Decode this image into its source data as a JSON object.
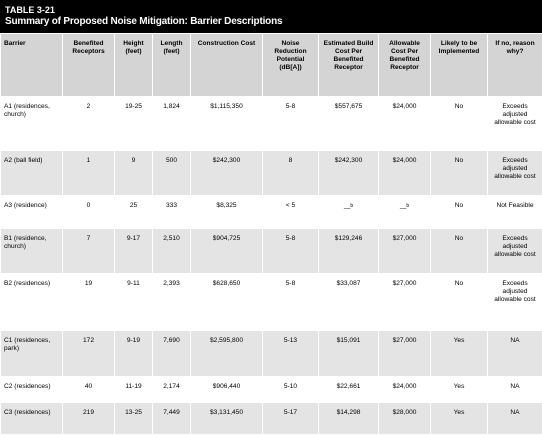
{
  "title": {
    "label": "TABLE 3-21",
    "caption": "Summary of Proposed Noise Mitigation: Barrier Descriptions"
  },
  "table": {
    "header": [
      "Barrier",
      "Benefited Receptors",
      "Height (feet)",
      "Length (feet)",
      "Construction Cost",
      "Noise Reduction Potential (dB[A])",
      "Estimated Build Cost Per Benefited Receptor",
      "Allowable Cost Per Benefited Receptor",
      "Likely to be Implemented",
      "If no, reason why?"
    ],
    "rows": [
      [
        "A1 (residences, church)",
        "2",
        "19-25",
        "1,824",
        "$1,115,350",
        "5-8",
        "$557,675",
        "$24,000",
        "No",
        "Exceeds adjusted allowable cost"
      ],
      [
        "A2 (ball field)",
        "1",
        "9",
        "500",
        "$242,300",
        "8",
        "$242,300",
        "$24,000",
        "No",
        "Exceeds adjusted allowable cost"
      ],
      [
        "A3 (residence)",
        "0",
        "25",
        "333",
        "$8,325",
        "< 5",
        {
          "text": "—",
          "note": "b"
        },
        {
          "text": "—",
          "note": "b"
        },
        "No",
        "Not Feasible"
      ],
      [
        "B1 (residence, church)",
        "7",
        "9-17",
        "2,510",
        "$904,725",
        "5-8",
        "$129,246",
        "$27,000",
        "No",
        "Exceeds adjusted allowable cost"
      ],
      [
        "B2 (residences)",
        "19",
        "9-11",
        "2,393",
        "$628,650",
        "5-8",
        "$33,087",
        "$27,000",
        "No",
        "Exceeds adjusted allowable cost"
      ],
      [
        "C1 (residences, park)",
        "172",
        "9-19",
        "7,690",
        "$2,595,800",
        "5-13",
        "$15,091",
        "$27,000",
        "Yes",
        "NA"
      ],
      [
        "C2 (residences)",
        "40",
        "11-19",
        "2,174",
        "$906,440",
        "5-10",
        "$22,661",
        "$24,000",
        "Yes",
        "NA"
      ],
      [
        "C3 (residences)",
        "219",
        "13-25",
        "7,449",
        "$3,131,450",
        "5-17",
        "$14,298",
        "$28,000",
        "Yes",
        "NA"
      ]
    ]
  }
}
